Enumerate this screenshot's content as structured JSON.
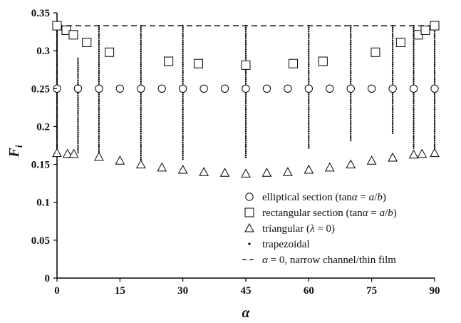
{
  "chart_data": {
    "type": "scatter",
    "xlabel": "α",
    "ylabel": "Fi",
    "xlim": [
      0,
      90
    ],
    "ylim": [
      0,
      0.35
    ],
    "x_ticks": [
      "0",
      "15",
      "30",
      "45",
      "60",
      "75",
      "90"
    ],
    "y_ticks": [
      "0",
      "0.05",
      "0.1",
      "0.15",
      "0.2",
      "0.25",
      "0.3",
      "0.35"
    ],
    "grid": false,
    "legend_position": "bottom-right",
    "series": [
      {
        "name": "elliptical section (tanα = a/b)",
        "marker": "circle",
        "x": [
          0,
          5,
          10,
          15,
          20,
          25,
          30,
          35,
          40,
          45,
          50,
          55,
          60,
          65,
          70,
          75,
          80,
          85,
          90
        ],
        "y": [
          0.25,
          0.25,
          0.25,
          0.25,
          0.25,
          0.25,
          0.25,
          0.25,
          0.25,
          0.25,
          0.25,
          0.25,
          0.25,
          0.25,
          0.25,
          0.25,
          0.25,
          0.25,
          0.25
        ]
      },
      {
        "name": "rectangular section (tanα = a/b)",
        "marker": "square",
        "x": [
          0,
          2.2,
          3.9,
          7.1,
          12.5,
          26.6,
          33.7,
          45,
          56.3,
          63.4,
          75.9,
          81.9,
          86.1,
          87.8,
          90
        ],
        "y": [
          0.333,
          0.327,
          0.321,
          0.311,
          0.298,
          0.286,
          0.283,
          0.281,
          0.283,
          0.286,
          0.298,
          0.311,
          0.321,
          0.327,
          0.333
        ]
      },
      {
        "name": "triangular (λ = 0)",
        "marker": "triangle",
        "x": [
          0,
          2.5,
          4,
          10,
          15,
          20,
          25,
          30,
          35,
          40,
          45,
          50,
          55,
          60,
          65,
          70,
          75,
          80,
          85,
          87,
          90
        ],
        "y": [
          0.165,
          0.164,
          0.164,
          0.16,
          0.155,
          0.15,
          0.146,
          0.143,
          0.14,
          0.139,
          0.138,
          0.139,
          0.14,
          0.143,
          0.146,
          0.15,
          0.155,
          0.159,
          0.163,
          0.164,
          0.165
        ]
      },
      {
        "name": "trapezoidal",
        "marker": "dot",
        "columns": [
          {
            "x": 0,
            "y_min": 0.165,
            "y_max": 0.333
          },
          {
            "x": 5,
            "y_min": 0.165,
            "y_max": 0.29
          },
          {
            "x": 10,
            "y_min": 0.158,
            "y_max": 0.333
          },
          {
            "x": 20,
            "y_min": 0.15,
            "y_max": 0.333
          },
          {
            "x": 30,
            "y_min": 0.155,
            "y_max": 0.333
          },
          {
            "x": 45,
            "y_min": 0.158,
            "y_max": 0.333
          },
          {
            "x": 60,
            "y_min": 0.17,
            "y_max": 0.333
          },
          {
            "x": 70,
            "y_min": 0.18,
            "y_max": 0.333
          },
          {
            "x": 80,
            "y_min": 0.19,
            "y_max": 0.333
          },
          {
            "x": 85,
            "y_min": 0.17,
            "y_max": 0.333
          },
          {
            "x": 90,
            "y_min": 0.167,
            "y_max": 0.333
          }
        ]
      },
      {
        "name": "α = 0, narrow channel/thin film",
        "marker": "dashed-line",
        "y": 0.333
      }
    ]
  }
}
